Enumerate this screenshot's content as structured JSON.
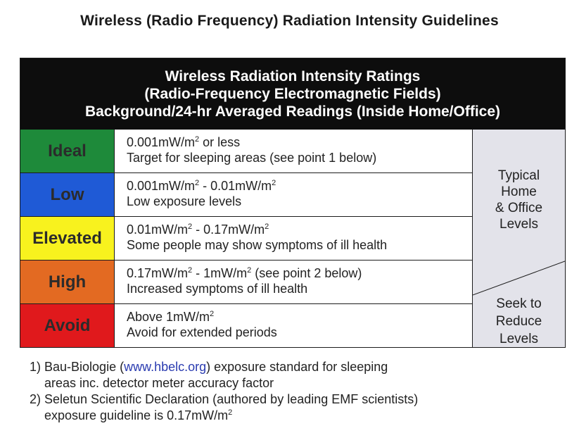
{
  "page": {
    "title": "Wireless (Radio Frequency) Radiation Intensity Guidelines"
  },
  "table": {
    "header": [
      "Wireless Radiation Intensity Ratings",
      "(Radio-Frequency Electromagnetic Fields)",
      "Background/24-hr Averaged Readings (Inside Home/Office)"
    ],
    "rows": [
      {
        "rating": "Ideal",
        "color": "#1e8a3a",
        "range_main": "0.001mW/m",
        "range_rest": " or less",
        "range_b": "",
        "range_b_rest": "",
        "note": "Target for sleeping areas (see point 1 below)"
      },
      {
        "rating": "Low",
        "color": "#1f5ad6",
        "range_main": "0.001mW/m",
        "range_rest": " - 0.01mW/m",
        "range_b": "2",
        "range_b_rest": "",
        "note": "Low exposure levels"
      },
      {
        "rating": "Elevated",
        "color": "#f8f21e",
        "range_main": "0.01mW/m",
        "range_rest": " - 0.17mW/m",
        "range_b": "2",
        "range_b_rest": "",
        "note": "Some people may show symptoms of ill health"
      },
      {
        "rating": "High",
        "color": "#e36a22",
        "range_main": "0.17mW/m",
        "range_rest": " - 1mW/m",
        "range_b": "2",
        "range_b_rest": " (see point 2  below)",
        "note": "Increased symptoms of ill health"
      },
      {
        "rating": "Avoid",
        "color": "#e0191c",
        "range_main": "Above 1mW/m",
        "range_rest": "",
        "range_b": "",
        "range_b_rest": "",
        "note": "Avoid for extended periods"
      }
    ],
    "superscript": "2",
    "side_top": [
      "Typical",
      "Home",
      "& Office",
      "Levels"
    ],
    "side_bottom": [
      "Seek to",
      "Reduce",
      "Levels"
    ],
    "side_color": "#e3e3ea"
  },
  "footnotes": {
    "n1_prefix": "1) Bau-Biologie (",
    "n1_link": "www.hbelc.org",
    "n1_suffix": ") exposure standard for sleeping",
    "n1_cont": "areas inc. detector meter accuracy factor",
    "n2": "2) Seletun Scientific Declaration (authored by leading EMF scientists)",
    "n2_cont": "exposure guideline is 0.17mW/m",
    "n2_sup": "2"
  }
}
